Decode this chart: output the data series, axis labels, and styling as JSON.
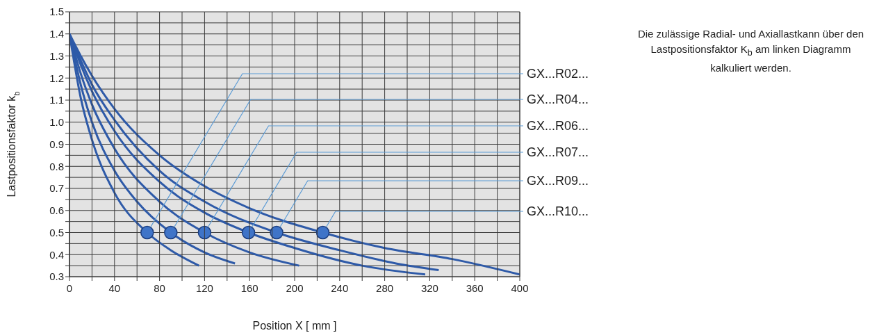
{
  "chart_data": {
    "type": "line",
    "xlabel": "Position X [ mm ]",
    "ylabel": "Lastpositionsfaktor k$_{b}$",
    "annotations": [
      "Die zulässige Radial- und Axiallastkann über den Lastpositionsfaktor K$_{b}$ am linken Diagramm kalkuliert werden."
    ],
    "xlim": [
      0,
      400
    ],
    "xticks": [
      0,
      {
        "value": 20,
        "label": null
      },
      40,
      {
        "value": 60,
        "label": null
      },
      80,
      {
        "value": 100,
        "label": null
      },
      120,
      {
        "value": 140,
        "label": null
      },
      160,
      {
        "value": 180,
        "label": null
      },
      200,
      {
        "value": 220,
        "label": null
      },
      240,
      {
        "value": 260,
        "label": null
      },
      280,
      {
        "value": 300,
        "label": null
      },
      320,
      {
        "value": 340,
        "label": null
      },
      360,
      {
        "value": 380,
        "label": null
      },
      400
    ],
    "ylim": [
      0.3,
      1.5
    ],
    "yticks": [
      0.3,
      {
        "value": 0.35,
        "label": null
      },
      0.4,
      {
        "value": 0.45,
        "label": null
      },
      0.5,
      {
        "value": 0.55,
        "label": null
      },
      0.6,
      {
        "value": 0.65,
        "label": null
      },
      0.7,
      {
        "value": 0.75,
        "label": null
      },
      0.8,
      {
        "value": 0.85,
        "label": null
      },
      0.9,
      {
        "value": 0.95,
        "label": null
      },
      {
        "value": 1,
        "label": "1.0"
      },
      {
        "value": 1.05,
        "label": null
      },
      1.1,
      {
        "value": 1.15,
        "label": null
      },
      1.2,
      {
        "value": 1.25,
        "label": null
      },
      1.3,
      {
        "value": 1.35,
        "label": null
      },
      1.4,
      {
        "value": 1.45,
        "label": null
      },
      1.5
    ],
    "grid": true,
    "marker": "none",
    "line_style": "solid",
    "series": [
      {
        "name": "GX...R02...",
        "color": "#2e5aa8",
        "x": [
          0,
          10,
          20,
          40,
          69,
          90,
          115
        ],
        "values": [
          1.4,
          1.11,
          0.92,
          0.68,
          0.5,
          0.42,
          0.35
        ]
      },
      {
        "name": "GX...R04...",
        "color": "#2e5aa8",
        "x": [
          0,
          10,
          20,
          40,
          60,
          90,
          120,
          147
        ],
        "values": [
          1.4,
          1.17,
          1.0,
          0.78,
          0.64,
          0.5,
          0.41,
          0.36
        ]
      },
      {
        "name": "GX...R06...",
        "color": "#2e5aa8",
        "x": [
          0,
          10,
          20,
          40,
          80,
          120,
          160,
          204
        ],
        "values": [
          1.4,
          1.22,
          1.08,
          0.88,
          0.64,
          0.5,
          0.41,
          0.35
        ]
      },
      {
        "name": "GX...R07...",
        "color": "#2e5aa8",
        "x": [
          0,
          10,
          20,
          40,
          80,
          120,
          159,
          200,
          260,
          316
        ],
        "values": [
          1.4,
          1.26,
          1.14,
          0.96,
          0.73,
          0.59,
          0.5,
          0.43,
          0.35,
          0.31
        ]
      },
      {
        "name": "GX...R09...",
        "color": "#2e5aa8",
        "x": [
          0,
          10,
          20,
          40,
          80,
          120,
          184,
          240,
          290,
          328
        ],
        "values": [
          1.4,
          1.28,
          1.17,
          1.01,
          0.78,
          0.64,
          0.5,
          0.42,
          0.36,
          0.33
        ]
      },
      {
        "name": "GX...R10...",
        "color": "#2e5aa8",
        "x": [
          0,
          10,
          20,
          40,
          80,
          120,
          160,
          225,
          280,
          340,
          400
        ],
        "values": [
          1.4,
          1.3,
          1.21,
          1.06,
          0.85,
          0.71,
          0.61,
          0.5,
          0.43,
          0.38,
          0.31
        ]
      },
      {
        "type": "scatter",
        "marker": "circle",
        "color": "#3f74c8",
        "x": [
          69,
          90,
          120,
          159,
          184,
          225
        ],
        "values": [
          0.5,
          0.5,
          0.5,
          0.5,
          0.5,
          0.5
        ]
      }
    ]
  }
}
